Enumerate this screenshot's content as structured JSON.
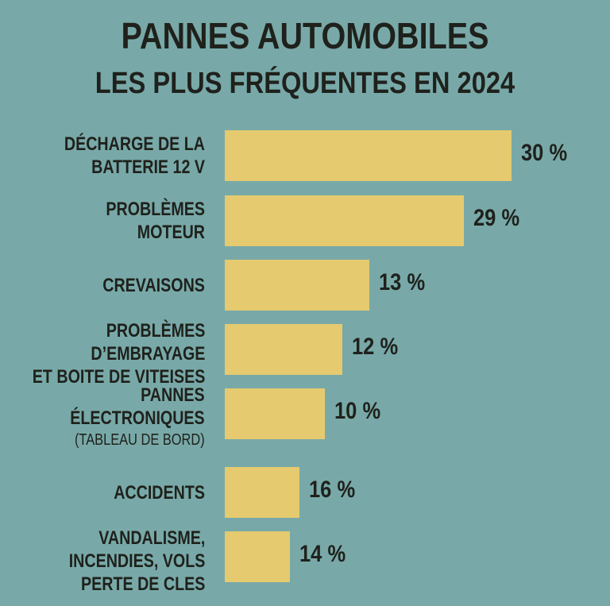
{
  "chart_data": {
    "type": "bar",
    "orientation": "horizontal",
    "title": "PANNES AUTOMOBILES",
    "subtitle": "LES PLUS FRÉQUENTES EN 2024",
    "categories": [
      [
        "DÉCHARGE DE LA",
        "BATTERIE 12 V"
      ],
      [
        "PROBLÈMES",
        "MOTEUR"
      ],
      [
        "CREVAISONS"
      ],
      [
        "PROBLÈMES",
        "D’EMBRAYAGE",
        "ET BOITE DE VITEISES"
      ],
      [
        "PANNES",
        "ÉLECTRONIQUES",
        "(TABLEAU DE BORD)"
      ],
      [
        "ACCIDENTS"
      ],
      [
        "VANDALISME,",
        "INCENDIES, VOLS",
        "PERTE DE CLES"
      ]
    ],
    "values": [
      30,
      29,
      13,
      12,
      10,
      16,
      14
    ],
    "bar_lengths_relative": [
      30,
      25,
      15.1,
      12.3,
      10.5,
      7.8,
      6.8
    ],
    "value_labels": [
      "30 %",
      "29 %",
      "13 %",
      "12 %",
      "10 %",
      "16 %",
      "14 %"
    ],
    "unit": "%",
    "xlabel": "",
    "ylabel": "",
    "xlim": [
      0,
      30
    ],
    "grid": false,
    "legend": "none"
  },
  "colors": {
    "background": "#78a9a8",
    "bar": "#e5ca6f",
    "text": "#1f211c"
  }
}
